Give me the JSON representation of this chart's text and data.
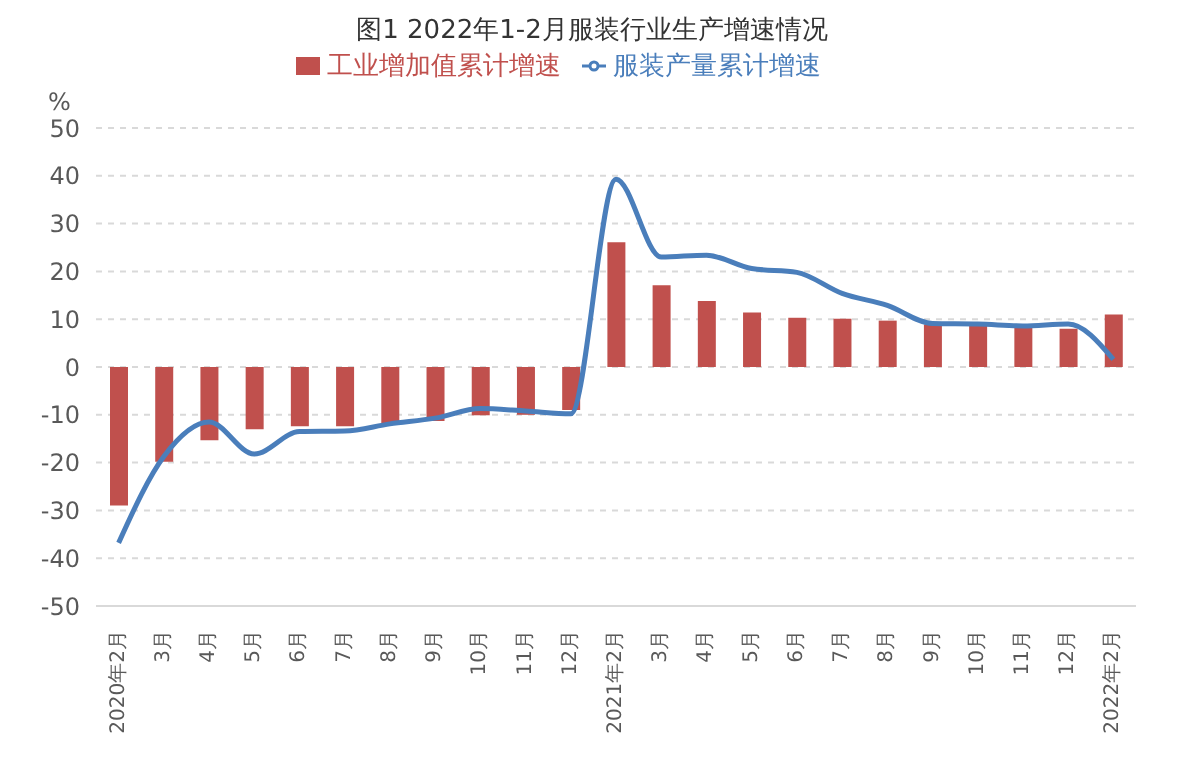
{
  "chart_data": {
    "type": "bar",
    "title": "图1 2022年1-2月服装行业生产增速情况",
    "ylabel": "%",
    "categories": [
      "2020年2月",
      "3月",
      "4月",
      "5月",
      "6月",
      "7月",
      "8月",
      "9月",
      "10月",
      "11月",
      "12月",
      "2021年2月",
      "3月",
      "4月",
      "5月",
      "6月",
      "7月",
      "8月",
      "9月",
      "10月",
      "11月",
      "12月",
      "2022年2月"
    ],
    "series": [
      {
        "name": "工业增加值累计增速",
        "color": "#c0504d",
        "values": [
          -29,
          -19.8,
          -15.3,
          -13,
          -12.4,
          -12.4,
          -11.8,
          -11.3,
          -10.1,
          -10,
          -9,
          26.1,
          17.1,
          13.8,
          11.4,
          10.3,
          10.1,
          9.7,
          8.9,
          8.7,
          8.3,
          8,
          11
        ]
      },
      {
        "name": "服装产量累计增速",
        "type": "line",
        "color": "#4a7ebb",
        "values": [
          -36.8,
          -18.7,
          -11.5,
          -18.2,
          -13.5,
          -13.4,
          -11.9,
          -10.7,
          -8.7,
          -9.2,
          -9.8,
          39.3,
          23,
          23.4,
          20.6,
          19.8,
          15.4,
          12.9,
          9.1,
          9,
          8.6,
          9,
          1.6
        ]
      }
    ],
    "ylim": [
      -50,
      50
    ],
    "yticks": [
      -50,
      -40,
      -30,
      -20,
      -10,
      0,
      10,
      20,
      30,
      40,
      50
    ],
    "grid": "y",
    "legend": "top",
    "marker": "none"
  }
}
